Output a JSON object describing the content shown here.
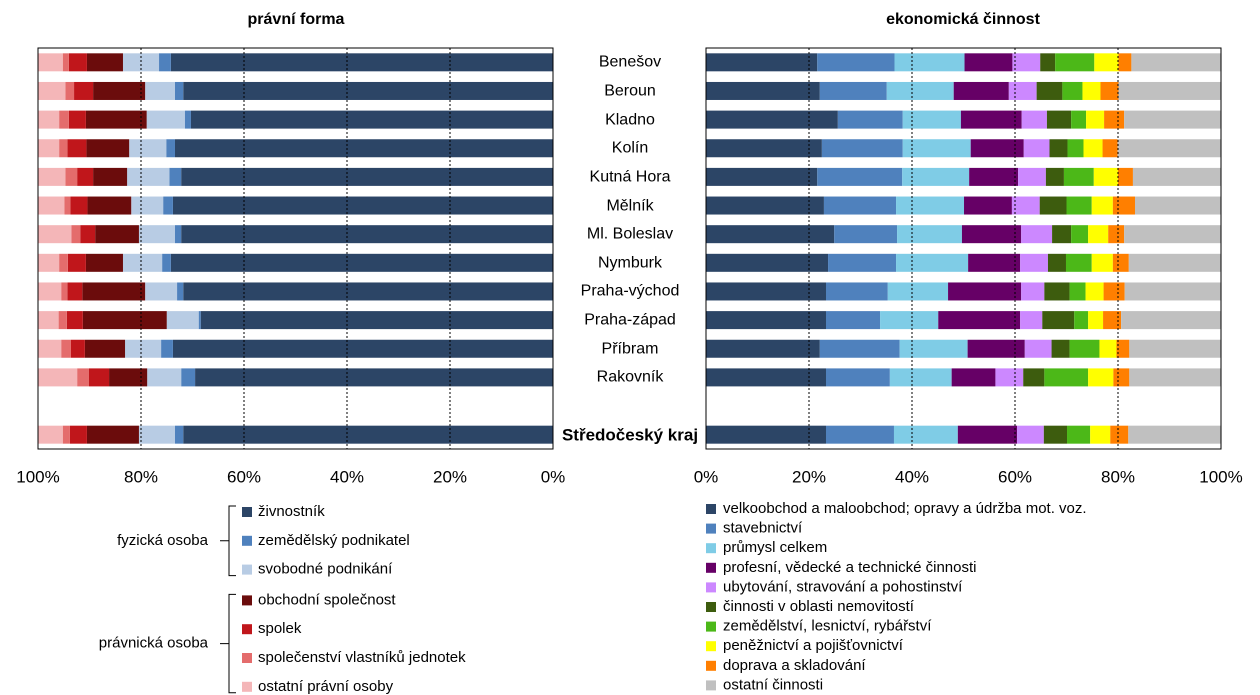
{
  "chart_data": [
    {
      "type": "stacked_bar_horizontal",
      "title": "právní forma",
      "categories": [
        "Benešov",
        "Beroun",
        "Kladno",
        "Kolín",
        "Kutná Hora",
        "Mělník",
        "Ml. Boleslav",
        "Nymburk",
        "Praha-východ",
        "Praha-západ",
        "Příbram",
        "Rakovník",
        null,
        "Středočeský kraj"
      ],
      "xlim": [
        0,
        100
      ],
      "x_inverted": true,
      "grid": true,
      "xticks": [
        {
          "value": 100,
          "label": "100%"
        },
        {
          "value": 80,
          "label": "80%"
        },
        {
          "value": 60,
          "label": "60%"
        },
        {
          "value": 40,
          "label": "40%"
        },
        {
          "value": 20,
          "label": "20%"
        },
        {
          "value": 0,
          "label": "0%"
        }
      ],
      "legend_groups": [
        {
          "label": "fyzická osoba",
          "series": [
            0,
            1,
            2
          ]
        },
        {
          "label": "právnická osoba",
          "series": [
            3,
            4,
            5,
            6
          ]
        }
      ],
      "series": [
        {
          "name": "živnostník",
          "color": "#2c4566",
          "values": [
            74.2,
            71.8,
            70.3,
            73.4,
            72.2,
            73.8,
            72.2,
            74.2,
            71.8,
            68.4,
            73.8,
            69.5,
            null,
            71.8
          ]
        },
        {
          "name": "zemědělský podnikatel",
          "color": "#4f81bd",
          "values": [
            2.3,
            1.6,
            1.2,
            1.7,
            2.3,
            1.9,
            1.2,
            1.7,
            1.2,
            0.4,
            2.3,
            2.7,
            null,
            1.6
          ]
        },
        {
          "name": "svobodné podnikání",
          "color": "#b8cce4",
          "values": [
            7.0,
            5.8,
            7.4,
            7.2,
            8.2,
            6.2,
            7.0,
            7.6,
            6.2,
            6.2,
            7.0,
            6.6,
            null,
            7.0
          ]
        },
        {
          "name": "obchodní společnost",
          "color": "#6b0c0c",
          "values": [
            7.0,
            10.1,
            11.8,
            8.3,
            6.6,
            8.5,
            8.5,
            7.2,
            12.2,
            16.3,
            7.8,
            7.4,
            null,
            10.1
          ]
        },
        {
          "name": "spolek",
          "color": "#c0161b",
          "values": [
            3.5,
            3.7,
            3.3,
            3.7,
            3.1,
            3.3,
            2.9,
            3.5,
            2.9,
            3.1,
            2.7,
            3.9,
            null,
            3.3
          ]
        },
        {
          "name": "společenství vlastníků jednotek",
          "color": "#e46c6c",
          "values": [
            1.2,
            1.7,
            1.9,
            1.6,
            2.3,
            1.2,
            1.7,
            1.7,
            1.2,
            1.6,
            1.9,
            2.3,
            null,
            1.4
          ]
        },
        {
          "name": "ostatní právní osoby",
          "color": "#f4b6b8",
          "values": [
            4.9,
            5.2,
            4.1,
            4.1,
            5.3,
            5.1,
            6.5,
            4.1,
            4.5,
            4.0,
            4.5,
            7.6,
            null,
            4.8
          ]
        }
      ]
    },
    {
      "type": "stacked_bar_horizontal",
      "title": "ekonomická činnost",
      "xlim": [
        0,
        100
      ],
      "x_inverted": false,
      "grid": true,
      "xticks": [
        {
          "value": 0,
          "label": "0%"
        },
        {
          "value": 20,
          "label": "20%"
        },
        {
          "value": 40,
          "label": "40%"
        },
        {
          "value": 60,
          "label": "60%"
        },
        {
          "value": 80,
          "label": "80%"
        },
        {
          "value": 100,
          "label": "100%"
        }
      ],
      "series": [
        {
          "name": "velkoobchod a maloobchod; opravy a údržba mot. voz.",
          "color": "#2c4566",
          "values": [
            21.6,
            22.1,
            25.6,
            22.5,
            21.6,
            22.9,
            24.9,
            23.7,
            23.3,
            23.3,
            22.1,
            23.3,
            null,
            23.3
          ]
        },
        {
          "name": "stavebnictví",
          "color": "#4f81bd",
          "values": [
            15.0,
            13.0,
            12.6,
            15.7,
            16.5,
            14.0,
            12.2,
            13.2,
            12.0,
            10.5,
            15.5,
            12.4,
            null,
            13.2
          ]
        },
        {
          "name": "průmysl celkem",
          "color": "#7fcce6",
          "values": [
            13.6,
            13.0,
            11.3,
            13.2,
            13.0,
            13.2,
            12.6,
            14.0,
            11.7,
            11.3,
            13.2,
            12.0,
            null,
            12.4
          ]
        },
        {
          "name": "profesní, vědecké a technické činnosti",
          "color": "#660066",
          "values": [
            9.3,
            10.7,
            11.8,
            10.3,
            9.5,
            9.3,
            11.5,
            10.1,
            14.2,
            15.9,
            11.1,
            8.5,
            null,
            11.5
          ]
        },
        {
          "name": "ubytování, stravování a pohostinství",
          "color": "#cc88ff",
          "values": [
            5.4,
            5.4,
            4.9,
            5.0,
            5.4,
            5.4,
            6.0,
            5.4,
            4.5,
            4.3,
            5.2,
            5.4,
            null,
            5.2
          ]
        },
        {
          "name": "činnosti v oblasti nemovitostí",
          "color": "#3d5c0e",
          "values": [
            2.9,
            5.0,
            4.7,
            3.5,
            3.5,
            5.2,
            3.7,
            3.5,
            4.9,
            6.2,
            3.5,
            4.1,
            null,
            4.5
          ]
        },
        {
          "name": "zemědělství, lesnictví, rybářství",
          "color": "#4cb818",
          "values": [
            7.6,
            3.9,
            2.9,
            3.1,
            5.8,
            4.9,
            3.3,
            5.0,
            3.1,
            2.7,
            5.8,
            8.5,
            null,
            4.5
          ]
        },
        {
          "name": "peněžnictví a pojišťovnictví",
          "color": "#ffff00",
          "values": [
            4.7,
            3.5,
            3.5,
            3.7,
            4.7,
            4.1,
            3.9,
            4.1,
            3.5,
            2.9,
            3.3,
            4.9,
            null,
            3.9
          ]
        },
        {
          "name": "doprava a skladování",
          "color": "#ff7f00",
          "values": [
            2.5,
            3.5,
            3.9,
            2.9,
            2.9,
            4.3,
            3.1,
            3.1,
            4.1,
            3.5,
            2.5,
            3.1,
            null,
            3.5
          ]
        },
        {
          "name": "ostatní činnosti",
          "color": "#c0c0c0",
          "values": [
            17.5,
            19.8,
            18.8,
            20.0,
            17.1,
            16.7,
            18.8,
            17.9,
            18.8,
            19.4,
            17.7,
            17.7,
            null,
            18.1
          ]
        }
      ]
    }
  ]
}
